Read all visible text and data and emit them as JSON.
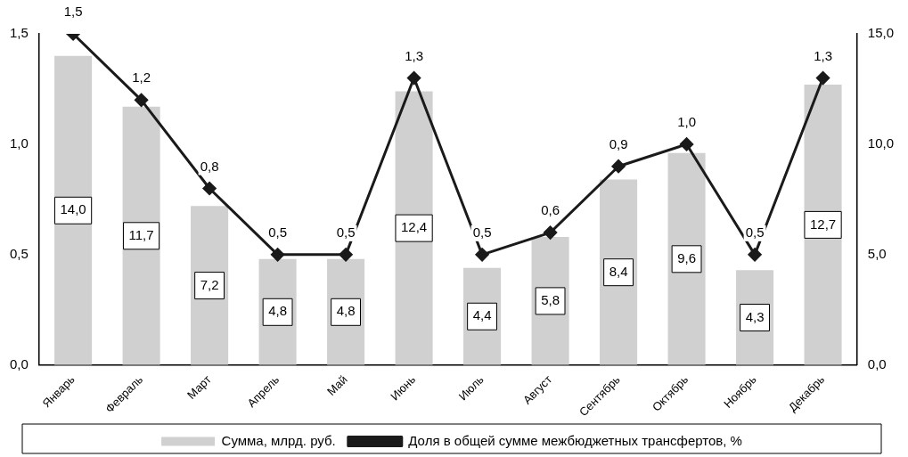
{
  "chart_data": {
    "type": "bar",
    "categories": [
      "Январь",
      "Февраль",
      "Март",
      "Апрель",
      "Май",
      "Июнь",
      "Июль",
      "Август",
      "Сентябрь",
      "Октябрь",
      "Ноябрь",
      "Декабрь"
    ],
    "series": [
      {
        "name": "Сумма, млрд. руб.",
        "axis": "y2",
        "color": "#d0d0d0",
        "values": [
          14.0,
          11.7,
          7.2,
          4.8,
          4.8,
          12.4,
          4.4,
          5.8,
          8.4,
          9.6,
          4.3,
          12.7
        ],
        "value_labels": [
          "14,0",
          "11,7",
          "7,2",
          "4,8",
          "4,8",
          "12,4",
          "4,4",
          "5,8",
          "8,4",
          "9,6",
          "4,3",
          "12,7"
        ]
      },
      {
        "name": "Доля в общей сумме межбюджетных трансфертов, %",
        "type": "line",
        "axis": "y",
        "color": "#1a1a1a",
        "marker": "diamond",
        "values": [
          1.5,
          1.2,
          0.8,
          0.5,
          0.5,
          1.3,
          0.5,
          0.6,
          0.9,
          1.0,
          0.5,
          1.3
        ],
        "value_labels": [
          "1,5",
          "1,2",
          "0,8",
          "0,5",
          "0,5",
          "1,3",
          "0,5",
          "0,6",
          "0,9",
          "1,0",
          "0,5",
          "1,3"
        ]
      }
    ],
    "ylim": [
      0,
      1.5
    ],
    "yticks": [
      {
        "value": 0,
        "label": "0,0"
      },
      {
        "value": 0.5,
        "label": "0,5"
      },
      {
        "value": 1,
        "label": "1,0"
      },
      {
        "value": 1.5,
        "label": "1,5"
      }
    ],
    "y2lim": [
      0,
      15
    ],
    "y2ticks": [
      {
        "value": 0,
        "label": "0,0"
      },
      {
        "value": 5,
        "label": "5,0"
      },
      {
        "value": 10,
        "label": "10,0"
      },
      {
        "value": 15,
        "label": "15,0"
      }
    ],
    "legend": "bottom",
    "grid": false
  }
}
